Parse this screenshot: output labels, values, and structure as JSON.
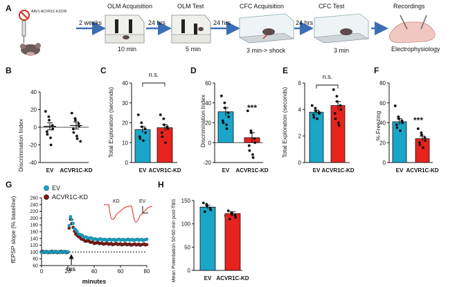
{
  "colors": {
    "ev": "#1aa6c8",
    "kd": "#e8231e",
    "ev_dark": "#0d6e85",
    "kd_dark": "#8e1410",
    "arrow": "#3a6fb5"
  },
  "schematic": {
    "panel": "A",
    "virus_label": "AAV1-ACVR1C-K222R",
    "arrow1": "2 weeks",
    "arrow2": "24 hrs",
    "arrow3": "24 hrs",
    "arrow4": "24 hrs",
    "steps": [
      {
        "title": "OLM Acquisition",
        "caption": "10 min"
      },
      {
        "title": "OLM Test",
        "caption": "5 min"
      },
      {
        "title": "CFC Acquisition",
        "caption": "3 min-> shock"
      },
      {
        "title": "CFC Test",
        "caption": "3 min"
      },
      {
        "title": "Recordings",
        "caption": "Electrophysiology"
      }
    ]
  },
  "chart_data": [
    {
      "panel": "B",
      "type": "scatter",
      "title": "",
      "categories": [
        "EV",
        "ACVR1C-KD"
      ],
      "ylabel": "Discrimination Index",
      "ylim": [
        -40,
        40
      ],
      "yticks": [
        -40,
        -20,
        0,
        20,
        40
      ],
      "means": [
        1,
        2
      ],
      "sem": [
        4,
        4
      ],
      "points": [
        [
          18,
          12,
          8,
          2,
          -2,
          -5,
          -8,
          -12,
          -20
        ],
        [
          16,
          10,
          8,
          4,
          1,
          -2,
          -6,
          -10,
          -13,
          -16
        ]
      ]
    },
    {
      "panel": "C",
      "type": "bar",
      "title": "",
      "categories": [
        "EV",
        "ACVR1C-KD"
      ],
      "ylabel": "Total Exploration (seconds)",
      "ylim": [
        0,
        40
      ],
      "yticks": [
        0,
        10,
        20,
        30,
        40
      ],
      "values": [
        16.5,
        17.5
      ],
      "sem": [
        1.5,
        1.5
      ],
      "points": [
        [
          24,
          20,
          18,
          17,
          15,
          13,
          12,
          11
        ],
        [
          24,
          22,
          19,
          18,
          17,
          15,
          13,
          10
        ]
      ],
      "annotation": "n.s."
    },
    {
      "panel": "D",
      "type": "bar",
      "title": "",
      "categories": [
        "EV",
        "ACVR1C-KD"
      ],
      "ylabel": "Discrimination Index",
      "ylim": [
        -20,
        60
      ],
      "yticks": [
        -20,
        0,
        20,
        40,
        60
      ],
      "values": [
        31,
        5
      ],
      "sem": [
        4,
        5
      ],
      "points": [
        [
          47,
          40,
          35,
          30,
          26,
          22,
          20,
          18,
          14
        ],
        [
          32,
          12,
          10,
          4,
          0,
          -3,
          -8,
          -12,
          -15
        ]
      ],
      "annotation": "***"
    },
    {
      "panel": "E",
      "type": "bar",
      "title": "",
      "categories": [
        "EV",
        "ACVR1C-KD"
      ],
      "ylabel": "Total Exploration (seconds)",
      "ylim": [
        0,
        6
      ],
      "yticks": [
        0,
        2,
        4,
        6
      ],
      "values": [
        3.8,
        4.3
      ],
      "sem": [
        0.15,
        0.3
      ],
      "points": [
        [
          4.3,
          4.1,
          3.9,
          3.8,
          3.7,
          3.6,
          3.4,
          3.3
        ],
        [
          5.5,
          5.0,
          4.6,
          4.3,
          4.0,
          3.7,
          3.3,
          3.0,
          2.8
        ]
      ],
      "annotation": "n.s."
    },
    {
      "panel": "F",
      "type": "bar",
      "title": "",
      "categories": [
        "EV",
        "ACVR1C-KD"
      ],
      "ylabel": "% Freezing",
      "ylim": [
        0,
        80
      ],
      "yticks": [
        0,
        20,
        40,
        60,
        80
      ],
      "values": [
        41,
        24
      ],
      "sem": [
        3,
        2.5
      ],
      "points": [
        [
          57,
          46,
          44,
          42,
          40,
          38,
          35,
          32
        ],
        [
          34,
          30,
          28,
          25,
          22,
          20,
          18,
          15
        ]
      ],
      "annotation": "***"
    },
    {
      "panel": "G",
      "type": "line",
      "title": "",
      "xlabel": "minutes",
      "ylabel": "fEPSP slope (% baseline)",
      "xlim": [
        0,
        80
      ],
      "ylim": [
        60,
        260
      ],
      "xticks": [
        0,
        20,
        40,
        60,
        80
      ],
      "yticks": [
        60,
        80,
        100,
        120,
        140,
        160,
        180,
        200,
        220,
        240,
        260
      ],
      "series": [
        {
          "name": "EV",
          "x": [
            0,
            18,
            20,
            21,
            22,
            23,
            25,
            28,
            32,
            40,
            50,
            60,
            70,
            80
          ],
          "y": [
            100,
            100,
            100,
            180,
            205,
            195,
            170,
            155,
            145,
            138,
            136,
            136,
            136,
            136
          ]
        },
        {
          "name": "ACVR1C-KD",
          "x": [
            0,
            18,
            20,
            21,
            22,
            23,
            25,
            28,
            32,
            40,
            50,
            60,
            70,
            80
          ],
          "y": [
            100,
            100,
            100,
            170,
            195,
            185,
            160,
            145,
            135,
            127,
            124,
            123,
            122,
            122
          ]
        }
      ],
      "annotation": "TBS",
      "inset_labels": [
        "KD",
        "EV"
      ]
    },
    {
      "panel": "H",
      "type": "bar",
      "title": "",
      "categories": [
        "EV",
        "ACVR1C-KD"
      ],
      "ylabel": "Mean Potentiation 50-60 min post-TBS",
      "ylim": [
        0,
        150
      ],
      "yticks": [
        0,
        50,
        100,
        150
      ],
      "values": [
        136,
        122
      ],
      "sem": [
        4,
        4
      ],
      "points": [
        [
          145,
          142,
          138,
          134,
          130,
          126
        ],
        [
          128,
          124,
          120,
          118,
          114,
          110
        ]
      ],
      "annotation": "**"
    }
  ]
}
